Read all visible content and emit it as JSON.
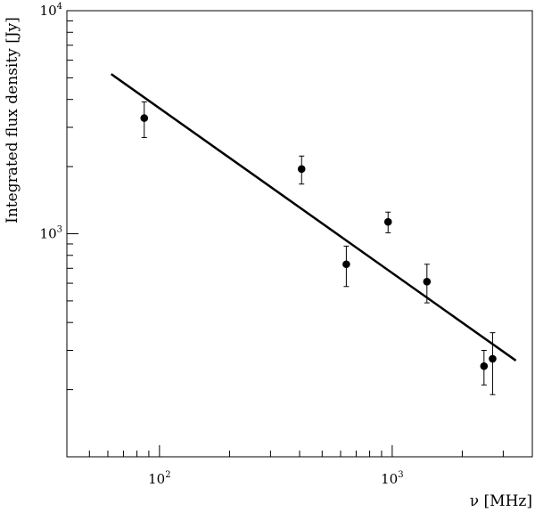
{
  "chart_data": {
    "type": "scatter",
    "title": "",
    "xlabel": "ν [MHz]",
    "ylabel": "Integrated flux density [Jy]",
    "xscale": "log",
    "yscale": "log",
    "xlim": [
      40,
      4000
    ],
    "ylim": [
      100,
      10000
    ],
    "grid": false,
    "x_tick_labels": [
      {
        "base": "10",
        "exp": "2",
        "value": 100
      },
      {
        "base": "10",
        "exp": "3",
        "value": 1000
      }
    ],
    "y_tick_labels": [
      {
        "base": "10",
        "exp": "3",
        "value": 1000
      },
      {
        "base": "10",
        "exp": "4",
        "value": 10000
      }
    ],
    "series": [
      {
        "points": [
          {
            "x": 86,
            "y": 3300,
            "err_low": 600,
            "err_high": 600
          },
          {
            "x": 408,
            "y": 1950,
            "err_low": 280,
            "err_high": 280
          },
          {
            "x": 635,
            "y": 730,
            "err_low": 150,
            "err_high": 150
          },
          {
            "x": 960,
            "y": 1130,
            "err_low": 120,
            "err_high": 120
          },
          {
            "x": 1410,
            "y": 610,
            "err_low": 120,
            "err_high": 120
          },
          {
            "x": 2480,
            "y": 255,
            "err_low": 45,
            "err_high": 45
          },
          {
            "x": 2700,
            "y": 275,
            "err_low": 85,
            "err_high": 85
          }
        ]
      }
    ],
    "fit_line": {
      "x": [
        62,
        3400
      ],
      "y": [
        5200,
        270
      ]
    }
  }
}
